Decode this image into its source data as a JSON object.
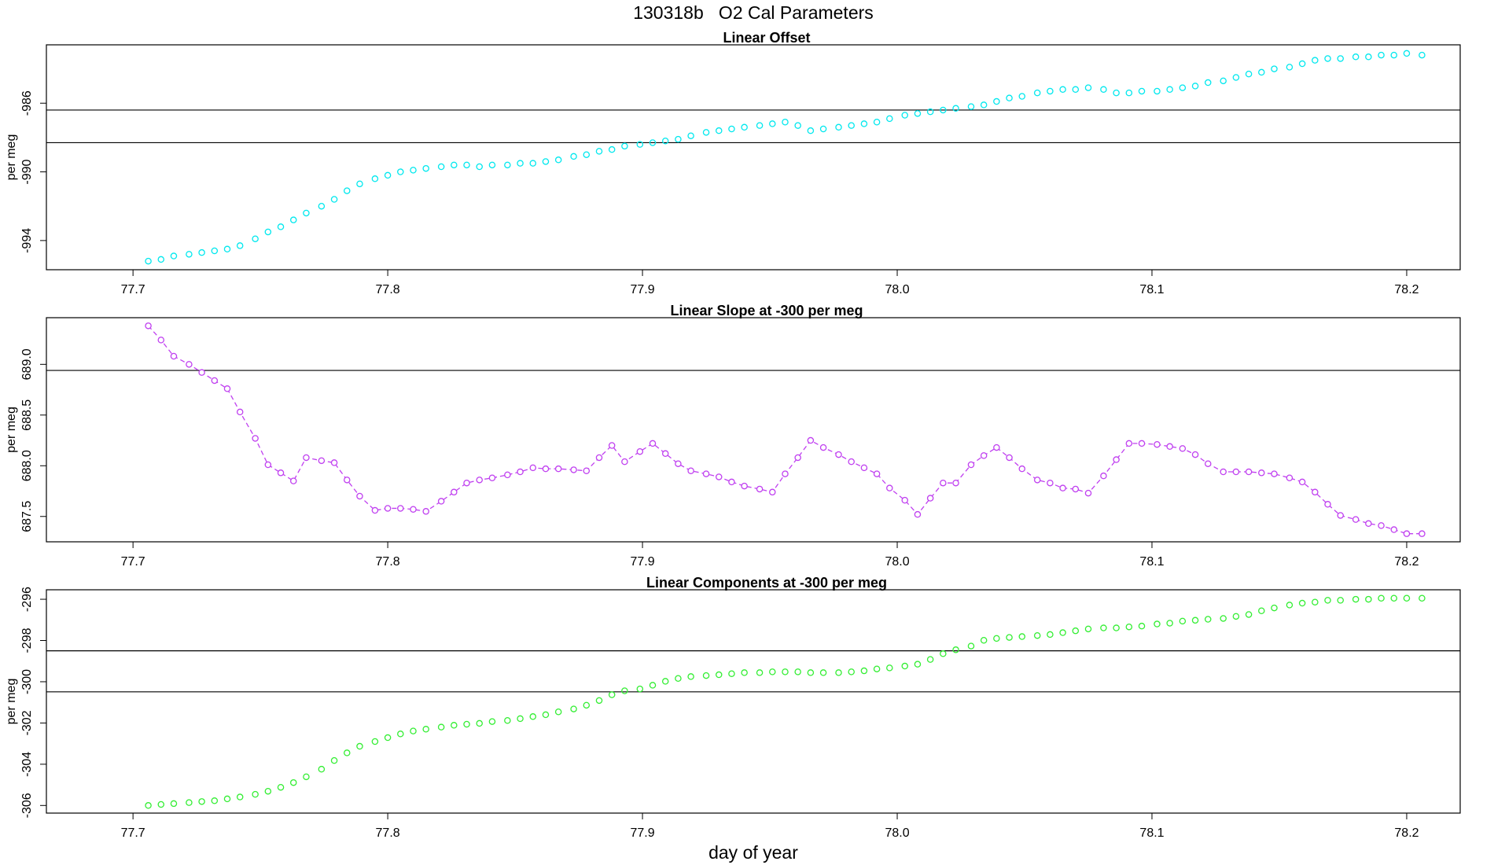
{
  "title": "130318b   O2 Cal Parameters",
  "xlabel": "day of year",
  "chart_data": [
    {
      "type": "scatter",
      "title": "Linear Offset",
      "ylabel": "per meg",
      "color": "#00e8ee",
      "connect": false,
      "x": [
        77.706,
        77.711,
        77.716,
        77.722,
        77.727,
        77.732,
        77.737,
        77.742,
        77.748,
        77.753,
        77.758,
        77.763,
        77.768,
        77.774,
        77.779,
        77.784,
        77.789,
        77.795,
        77.8,
        77.805,
        77.81,
        77.815,
        77.821,
        77.826,
        77.831,
        77.836,
        77.841,
        77.847,
        77.852,
        77.857,
        77.862,
        77.867,
        77.873,
        77.878,
        77.883,
        77.888,
        77.893,
        77.899,
        77.904,
        77.909,
        77.914,
        77.919,
        77.925,
        77.93,
        77.935,
        77.94,
        77.946,
        77.951,
        77.956,
        77.961,
        77.966,
        77.971,
        77.977,
        77.982,
        77.987,
        77.992,
        77.997,
        78.003,
        78.008,
        78.013,
        78.018,
        78.023,
        78.029,
        78.034,
        78.039,
        78.044,
        78.049,
        78.055,
        78.06,
        78.065,
        78.07,
        78.075,
        78.081,
        78.086,
        78.091,
        78.096,
        78.102,
        78.107,
        78.112,
        78.117,
        78.122,
        78.128,
        78.133,
        78.138,
        78.143,
        78.148,
        78.154,
        78.159,
        78.164,
        78.169,
        78.174,
        78.18,
        78.185,
        78.19,
        78.195,
        78.2,
        78.206
      ],
      "values": [
        -995.2,
        -995.1,
        -994.9,
        -994.8,
        -994.7,
        -994.6,
        -994.5,
        -994.3,
        -993.9,
        -993.5,
        -993.2,
        -992.8,
        -992.4,
        -992.0,
        -991.6,
        -991.1,
        -990.7,
        -990.4,
        -990.2,
        -990.0,
        -989.9,
        -989.8,
        -989.7,
        -989.6,
        -989.6,
        -989.7,
        -989.6,
        -989.6,
        -989.5,
        -989.5,
        -989.4,
        -989.3,
        -989.1,
        -989.0,
        -988.8,
        -988.7,
        -988.5,
        -988.4,
        -988.3,
        -988.2,
        -988.1,
        -987.9,
        -987.7,
        -987.6,
        -987.5,
        -987.4,
        -987.3,
        -987.2,
        -987.1,
        -987.3,
        -987.6,
        -987.5,
        -987.4,
        -987.3,
        -987.2,
        -987.1,
        -986.9,
        -986.7,
        -986.6,
        -986.5,
        -986.4,
        -986.3,
        -986.2,
        -986.1,
        -985.9,
        -985.7,
        -985.6,
        -985.4,
        -985.3,
        -985.2,
        -985.2,
        -985.1,
        -985.2,
        -985.4,
        -985.4,
        -985.3,
        -985.3,
        -985.2,
        -985.1,
        -985.0,
        -984.8,
        -984.7,
        -984.5,
        -984.3,
        -984.2,
        -984.0,
        -983.9,
        -983.7,
        -983.5,
        -983.4,
        -983.4,
        -983.3,
        -983.3,
        -983.2,
        -983.2,
        -983.1,
        -983.2
      ],
      "xlim": [
        77.666,
        78.221
      ],
      "xticks": [
        77.7,
        77.8,
        77.9,
        {
          "value": 78,
          "label": "78.0"
        },
        78.1,
        78.2
      ],
      "ylim": [
        -995.7,
        -982.6
      ],
      "yticks": [
        -994,
        -990,
        -986
      ],
      "hlines": [
        -986.4,
        -988.3
      ]
    },
    {
      "type": "scatter",
      "title": "Linear Slope at -300 per meg",
      "ylabel": "per meg",
      "color": "#c040f0",
      "connect": true,
      "x": [
        77.706,
        77.711,
        77.716,
        77.722,
        77.727,
        77.732,
        77.737,
        77.742,
        77.748,
        77.753,
        77.758,
        77.763,
        77.768,
        77.774,
        77.779,
        77.784,
        77.789,
        77.795,
        77.8,
        77.805,
        77.81,
        77.815,
        77.821,
        77.826,
        77.831,
        77.836,
        77.841,
        77.847,
        77.852,
        77.857,
        77.862,
        77.867,
        77.873,
        77.878,
        77.883,
        77.888,
        77.893,
        77.899,
        77.904,
        77.909,
        77.914,
        77.919,
        77.925,
        77.93,
        77.935,
        77.94,
        77.946,
        77.951,
        77.956,
        77.961,
        77.966,
        77.971,
        77.977,
        77.982,
        77.987,
        77.992,
        77.997,
        78.003,
        78.008,
        78.013,
        78.018,
        78.023,
        78.029,
        78.034,
        78.039,
        78.044,
        78.049,
        78.055,
        78.06,
        78.065,
        78.07,
        78.075,
        78.081,
        78.086,
        78.091,
        78.096,
        78.102,
        78.107,
        78.112,
        78.117,
        78.122,
        78.128,
        78.133,
        78.138,
        78.143,
        78.148,
        78.154,
        78.159,
        78.164,
        78.169,
        78.174,
        78.18,
        78.185,
        78.19,
        78.195,
        78.2,
        78.206
      ],
      "values": [
        689.38,
        689.24,
        689.08,
        689.0,
        688.92,
        688.84,
        688.76,
        688.53,
        688.27,
        688.01,
        687.93,
        687.85,
        688.08,
        688.05,
        688.03,
        687.86,
        687.7,
        687.56,
        687.58,
        687.58,
        687.57,
        687.55,
        687.65,
        687.74,
        687.83,
        687.86,
        687.88,
        687.91,
        687.94,
        687.98,
        687.97,
        687.97,
        687.96,
        687.95,
        688.08,
        688.2,
        688.04,
        688.14,
        688.22,
        688.12,
        688.02,
        687.95,
        687.92,
        687.89,
        687.84,
        687.8,
        687.77,
        687.74,
        687.92,
        688.08,
        688.25,
        688.18,
        688.11,
        688.04,
        687.98,
        687.92,
        687.78,
        687.66,
        687.52,
        687.68,
        687.83,
        687.83,
        688.01,
        688.1,
        688.18,
        688.08,
        687.97,
        687.86,
        687.83,
        687.78,
        687.77,
        687.73,
        687.9,
        688.06,
        688.22,
        688.22,
        688.21,
        688.19,
        688.17,
        688.11,
        688.02,
        687.94,
        687.94,
        687.94,
        687.93,
        687.92,
        687.88,
        687.84,
        687.74,
        687.62,
        687.51,
        687.47,
        687.43,
        687.41,
        687.37,
        687.33,
        687.33
      ],
      "xlim": [
        77.666,
        78.221
      ],
      "xticks": [
        77.7,
        77.8,
        77.9,
        {
          "value": 78,
          "label": "78.0"
        },
        78.1,
        78.2
      ],
      "ylim": [
        687.25,
        689.46
      ],
      "yticks": [
        687.5,
        {
          "value": 688,
          "label": "688.0"
        },
        688.5,
        {
          "value": 689,
          "label": "689.0"
        }
      ],
      "hlines": [
        688.94
      ]
    },
    {
      "type": "scatter",
      "title": "Linear Components at -300 per meg",
      "ylabel": "per meg",
      "color": "#33ee33",
      "connect": false,
      "x": [
        77.706,
        77.711,
        77.716,
        77.722,
        77.727,
        77.732,
        77.737,
        77.742,
        77.748,
        77.753,
        77.758,
        77.763,
        77.768,
        77.774,
        77.779,
        77.784,
        77.789,
        77.795,
        77.8,
        77.805,
        77.81,
        77.815,
        77.821,
        77.826,
        77.831,
        77.836,
        77.841,
        77.847,
        77.852,
        77.857,
        77.862,
        77.867,
        77.873,
        77.878,
        77.883,
        77.888,
        77.893,
        77.899,
        77.904,
        77.909,
        77.914,
        77.919,
        77.925,
        77.93,
        77.935,
        77.94,
        77.946,
        77.951,
        77.956,
        77.961,
        77.966,
        77.971,
        77.977,
        77.982,
        77.987,
        77.992,
        77.997,
        78.003,
        78.008,
        78.013,
        78.018,
        78.023,
        78.029,
        78.034,
        78.039,
        78.044,
        78.049,
        78.055,
        78.06,
        78.065,
        78.07,
        78.075,
        78.081,
        78.086,
        78.091,
        78.096,
        78.102,
        78.107,
        78.112,
        78.117,
        78.122,
        78.128,
        78.133,
        78.138,
        78.143,
        78.148,
        78.154,
        78.159,
        78.164,
        78.169,
        78.174,
        78.18,
        78.185,
        78.19,
        78.195,
        78.2,
        78.206
      ],
      "values": [
        -306.0,
        -305.95,
        -305.91,
        -305.86,
        -305.81,
        -305.77,
        -305.68,
        -305.59,
        -305.46,
        -305.31,
        -305.12,
        -304.89,
        -304.61,
        -304.24,
        -303.82,
        -303.45,
        -303.13,
        -302.9,
        -302.71,
        -302.53,
        -302.39,
        -302.3,
        -302.2,
        -302.11,
        -302.06,
        -302.02,
        -301.93,
        -301.88,
        -301.79,
        -301.69,
        -301.6,
        -301.46,
        -301.32,
        -301.14,
        -300.91,
        -300.63,
        -300.44,
        -300.35,
        -300.17,
        -299.98,
        -299.84,
        -299.75,
        -299.7,
        -299.66,
        -299.61,
        -299.56,
        -299.56,
        -299.52,
        -299.52,
        -299.52,
        -299.56,
        -299.56,
        -299.56,
        -299.52,
        -299.47,
        -299.38,
        -299.33,
        -299.24,
        -299.15,
        -298.92,
        -298.64,
        -298.45,
        -298.27,
        -297.99,
        -297.9,
        -297.85,
        -297.81,
        -297.76,
        -297.71,
        -297.62,
        -297.53,
        -297.44,
        -297.39,
        -297.39,
        -297.34,
        -297.3,
        -297.2,
        -297.16,
        -297.06,
        -297.02,
        -296.97,
        -296.93,
        -296.83,
        -296.74,
        -296.56,
        -296.42,
        -296.28,
        -296.19,
        -296.14,
        -296.05,
        -296.05,
        -296.0,
        -296.0,
        -295.95,
        -295.95,
        -295.95,
        -295.95
      ],
      "xlim": [
        77.666,
        78.221
      ],
      "xticks": [
        77.7,
        77.8,
        77.9,
        {
          "value": 78,
          "label": "78.0"
        },
        78.1,
        78.2
      ],
      "ylim": [
        -306.37,
        -295.54
      ],
      "yticks": [
        -306,
        -304,
        -302,
        -300,
        -298,
        -296
      ],
      "hlines": [
        -298.5,
        -300.49
      ]
    }
  ]
}
